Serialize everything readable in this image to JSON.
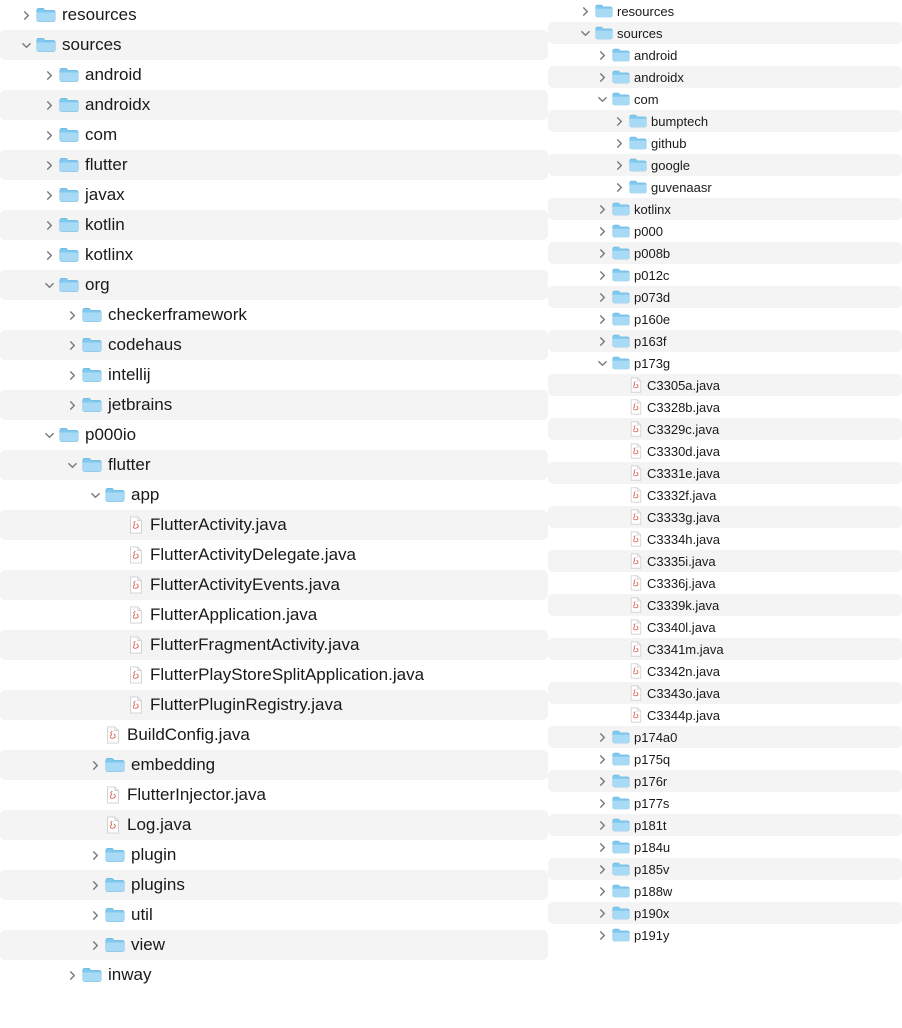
{
  "colors": {
    "folder_fill": "#7fc9f0",
    "folder_fill_light": "#a8daf5",
    "folder_stroke": "#5ba8d4",
    "chevron": "#7a7a7a",
    "file_bg": "#ffffff",
    "file_border": "#cfcfcf",
    "java_red": "#d44a3a",
    "alt_row": "#f4f4f4",
    "text": "#1a1a1a"
  },
  "left_panel": {
    "indent_unit": 23,
    "base_indent": 20,
    "items": [
      {
        "type": "folder",
        "expanded": false,
        "depth": 0,
        "label": "resources",
        "alt": false
      },
      {
        "type": "folder",
        "expanded": true,
        "depth": 0,
        "label": "sources",
        "alt": true
      },
      {
        "type": "folder",
        "expanded": false,
        "depth": 1,
        "label": "android",
        "alt": false
      },
      {
        "type": "folder",
        "expanded": false,
        "depth": 1,
        "label": "androidx",
        "alt": true
      },
      {
        "type": "folder",
        "expanded": false,
        "depth": 1,
        "label": "com",
        "alt": false
      },
      {
        "type": "folder",
        "expanded": false,
        "depth": 1,
        "label": "flutter",
        "alt": true
      },
      {
        "type": "folder",
        "expanded": false,
        "depth": 1,
        "label": "javax",
        "alt": false
      },
      {
        "type": "folder",
        "expanded": false,
        "depth": 1,
        "label": "kotlin",
        "alt": true
      },
      {
        "type": "folder",
        "expanded": false,
        "depth": 1,
        "label": "kotlinx",
        "alt": false
      },
      {
        "type": "folder",
        "expanded": true,
        "depth": 1,
        "label": "org",
        "alt": true
      },
      {
        "type": "folder",
        "expanded": false,
        "depth": 2,
        "label": "checkerframework",
        "alt": false
      },
      {
        "type": "folder",
        "expanded": false,
        "depth": 2,
        "label": "codehaus",
        "alt": true
      },
      {
        "type": "folder",
        "expanded": false,
        "depth": 2,
        "label": "intellij",
        "alt": false
      },
      {
        "type": "folder",
        "expanded": false,
        "depth": 2,
        "label": "jetbrains",
        "alt": true
      },
      {
        "type": "folder",
        "expanded": true,
        "depth": 1,
        "label": "p000io",
        "alt": false
      },
      {
        "type": "folder",
        "expanded": true,
        "depth": 2,
        "label": "flutter",
        "alt": true
      },
      {
        "type": "folder",
        "expanded": true,
        "depth": 3,
        "label": "app",
        "alt": false
      },
      {
        "type": "java",
        "depth": 4,
        "label": "FlutterActivity.java",
        "alt": true
      },
      {
        "type": "java",
        "depth": 4,
        "label": "FlutterActivityDelegate.java",
        "alt": false
      },
      {
        "type": "java",
        "depth": 4,
        "label": "FlutterActivityEvents.java",
        "alt": true
      },
      {
        "type": "java",
        "depth": 4,
        "label": "FlutterApplication.java",
        "alt": false
      },
      {
        "type": "java",
        "depth": 4,
        "label": "FlutterFragmentActivity.java",
        "alt": true
      },
      {
        "type": "java",
        "depth": 4,
        "label": "FlutterPlayStoreSplitApplication.java",
        "alt": false
      },
      {
        "type": "java",
        "depth": 4,
        "label": "FlutterPluginRegistry.java",
        "alt": true
      },
      {
        "type": "java",
        "depth": 3,
        "label": "BuildConfig.java",
        "alt": false
      },
      {
        "type": "folder",
        "expanded": false,
        "depth": 3,
        "label": "embedding",
        "alt": true
      },
      {
        "type": "java",
        "depth": 3,
        "label": "FlutterInjector.java",
        "alt": false
      },
      {
        "type": "java",
        "depth": 3,
        "label": "Log.java",
        "alt": true
      },
      {
        "type": "folder",
        "expanded": false,
        "depth": 3,
        "label": "plugin",
        "alt": false
      },
      {
        "type": "folder",
        "expanded": false,
        "depth": 3,
        "label": "plugins",
        "alt": true
      },
      {
        "type": "folder",
        "expanded": false,
        "depth": 3,
        "label": "util",
        "alt": false
      },
      {
        "type": "folder",
        "expanded": false,
        "depth": 3,
        "label": "view",
        "alt": true
      },
      {
        "type": "folder",
        "expanded": false,
        "depth": 2,
        "label": "inway",
        "alt": false
      }
    ]
  },
  "right_panel": {
    "indent_unit": 17,
    "base_indent": 14,
    "items": [
      {
        "type": "folder",
        "expanded": false,
        "depth": 1,
        "label": "resources",
        "alt": false
      },
      {
        "type": "folder",
        "expanded": true,
        "depth": 1,
        "label": "sources",
        "alt": true
      },
      {
        "type": "folder",
        "expanded": false,
        "depth": 2,
        "label": "android",
        "alt": false
      },
      {
        "type": "folder",
        "expanded": false,
        "depth": 2,
        "label": "androidx",
        "alt": true
      },
      {
        "type": "folder",
        "expanded": true,
        "depth": 2,
        "label": "com",
        "alt": false
      },
      {
        "type": "folder",
        "expanded": false,
        "depth": 3,
        "label": "bumptech",
        "alt": true
      },
      {
        "type": "folder",
        "expanded": false,
        "depth": 3,
        "label": "github",
        "alt": false
      },
      {
        "type": "folder",
        "expanded": false,
        "depth": 3,
        "label": "google",
        "alt": true
      },
      {
        "type": "folder",
        "expanded": false,
        "depth": 3,
        "label": "guvenaasr",
        "alt": false
      },
      {
        "type": "folder",
        "expanded": false,
        "depth": 2,
        "label": "kotlinx",
        "alt": true
      },
      {
        "type": "folder",
        "expanded": false,
        "depth": 2,
        "label": "p000",
        "alt": false
      },
      {
        "type": "folder",
        "expanded": false,
        "depth": 2,
        "label": "p008b",
        "alt": true
      },
      {
        "type": "folder",
        "expanded": false,
        "depth": 2,
        "label": "p012c",
        "alt": false
      },
      {
        "type": "folder",
        "expanded": false,
        "depth": 2,
        "label": "p073d",
        "alt": true
      },
      {
        "type": "folder",
        "expanded": false,
        "depth": 2,
        "label": "p160e",
        "alt": false
      },
      {
        "type": "folder",
        "expanded": false,
        "depth": 2,
        "label": "p163f",
        "alt": true
      },
      {
        "type": "folder",
        "expanded": true,
        "depth": 2,
        "label": "p173g",
        "alt": false
      },
      {
        "type": "java",
        "depth": 3,
        "label": "C3305a.java",
        "alt": true
      },
      {
        "type": "java",
        "depth": 3,
        "label": "C3328b.java",
        "alt": false
      },
      {
        "type": "java",
        "depth": 3,
        "label": "C3329c.java",
        "alt": true
      },
      {
        "type": "java",
        "depth": 3,
        "label": "C3330d.java",
        "alt": false
      },
      {
        "type": "java",
        "depth": 3,
        "label": "C3331e.java",
        "alt": true
      },
      {
        "type": "java",
        "depth": 3,
        "label": "C3332f.java",
        "alt": false
      },
      {
        "type": "java",
        "depth": 3,
        "label": "C3333g.java",
        "alt": true
      },
      {
        "type": "java",
        "depth": 3,
        "label": "C3334h.java",
        "alt": false
      },
      {
        "type": "java",
        "depth": 3,
        "label": "C3335i.java",
        "alt": true
      },
      {
        "type": "java",
        "depth": 3,
        "label": "C3336j.java",
        "alt": false
      },
      {
        "type": "java",
        "depth": 3,
        "label": "C3339k.java",
        "alt": true
      },
      {
        "type": "java",
        "depth": 3,
        "label": "C3340l.java",
        "alt": false
      },
      {
        "type": "java",
        "depth": 3,
        "label": "C3341m.java",
        "alt": true
      },
      {
        "type": "java",
        "depth": 3,
        "label": "C3342n.java",
        "alt": false
      },
      {
        "type": "java",
        "depth": 3,
        "label": "C3343o.java",
        "alt": true
      },
      {
        "type": "java",
        "depth": 3,
        "label": "C3344p.java",
        "alt": false
      },
      {
        "type": "folder",
        "expanded": false,
        "depth": 2,
        "label": "p174a0",
        "alt": true
      },
      {
        "type": "folder",
        "expanded": false,
        "depth": 2,
        "label": "p175q",
        "alt": false
      },
      {
        "type": "folder",
        "expanded": false,
        "depth": 2,
        "label": "p176r",
        "alt": true
      },
      {
        "type": "folder",
        "expanded": false,
        "depth": 2,
        "label": "p177s",
        "alt": false
      },
      {
        "type": "folder",
        "expanded": false,
        "depth": 2,
        "label": "p181t",
        "alt": true
      },
      {
        "type": "folder",
        "expanded": false,
        "depth": 2,
        "label": "p184u",
        "alt": false
      },
      {
        "type": "folder",
        "expanded": false,
        "depth": 2,
        "label": "p185v",
        "alt": true
      },
      {
        "type": "folder",
        "expanded": false,
        "depth": 2,
        "label": "p188w",
        "alt": false
      },
      {
        "type": "folder",
        "expanded": false,
        "depth": 2,
        "label": "p190x",
        "alt": true
      },
      {
        "type": "folder",
        "expanded": false,
        "depth": 2,
        "label": "p191y",
        "alt": false
      }
    ]
  }
}
